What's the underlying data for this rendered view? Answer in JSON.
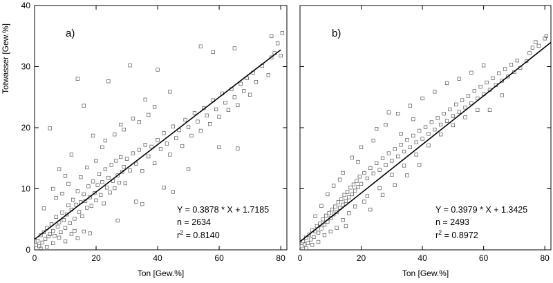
{
  "chart_data": [
    {
      "type": "scatter",
      "panel_label": "a)",
      "xlabel": "Ton [Gew.%]",
      "ylabel": "Totwasser [Gew.%]",
      "xlim": [
        0,
        82
      ],
      "ylim": [
        0,
        40
      ],
      "xticks": [
        0,
        20,
        40,
        60,
        80
      ],
      "yticks": [
        0,
        10,
        20,
        30,
        40
      ],
      "xtick_labels": [
        "0",
        "20",
        "40",
        "60",
        "80"
      ],
      "ytick_labels": [
        "0",
        "10",
        "20",
        "30",
        "40"
      ],
      "regression": {
        "slope": 0.3878,
        "intercept": 1.7185,
        "x_range": [
          0,
          80
        ]
      },
      "annotation": {
        "equation": "Y = 0.3878 * X + 1.7185",
        "n": "n = 2634",
        "r2_prefix": "r",
        "r2_sup": "2",
        "r2_value": " = 0.8140"
      },
      "points": [
        [
          0.5,
          0.8
        ],
        [
          1,
          1.5
        ],
        [
          1.5,
          0.6
        ],
        [
          2,
          2.4
        ],
        [
          2.5,
          1.2
        ],
        [
          3,
          2.9
        ],
        [
          3.5,
          1.8
        ],
        [
          4,
          3.6
        ],
        [
          4.5,
          2.2
        ],
        [
          5,
          2.6
        ],
        [
          5.5,
          4.2
        ],
        [
          6,
          3.1
        ],
        [
          6.5,
          2.3
        ],
        [
          7,
          5.4
        ],
        [
          7.5,
          3.8
        ],
        [
          8,
          4.5
        ],
        [
          8.5,
          2.9
        ],
        [
          9,
          6.1
        ],
        [
          9.5,
          4.9
        ],
        [
          10,
          3.6
        ],
        [
          10.5,
          5.8
        ],
        [
          11,
          7.3
        ],
        [
          11.5,
          4.4
        ],
        [
          12,
          6.6
        ],
        [
          12.5,
          8.2
        ],
        [
          13,
          5.1
        ],
        [
          13.5,
          7.4
        ],
        [
          14,
          9.6
        ],
        [
          14.5,
          6.2
        ],
        [
          15,
          7.8
        ],
        [
          15.5,
          5.5
        ],
        [
          16,
          9.1
        ],
        [
          16.5,
          8.0
        ],
        [
          17,
          6.9
        ],
        [
          17.5,
          10.4
        ],
        [
          18,
          8.6
        ],
        [
          18.5,
          7.2
        ],
        [
          19,
          11.2
        ],
        [
          19.5,
          9.3
        ],
        [
          20,
          8.1
        ],
        [
          20.5,
          10.6
        ],
        [
          21,
          12.4
        ],
        [
          21.5,
          9.0
        ],
        [
          22,
          11.1
        ],
        [
          22.5,
          7.6
        ],
        [
          23,
          13.2
        ],
        [
          23.5,
          10.2
        ],
        [
          24,
          11.8
        ],
        [
          24.5,
          9.4
        ],
        [
          25,
          13.9
        ],
        [
          25.5,
          11.3
        ],
        [
          26,
          10.1
        ],
        [
          26.5,
          14.6
        ],
        [
          27,
          12.2
        ],
        [
          27.5,
          11.0
        ],
        [
          28,
          15.2
        ],
        [
          28.5,
          12.8
        ],
        [
          29,
          13.6
        ],
        [
          29.5,
          10.9
        ],
        [
          30,
          14.9
        ],
        [
          31,
          13.0
        ],
        [
          32,
          15.8
        ],
        [
          33,
          14.1
        ],
        [
          34,
          16.4
        ],
        [
          35,
          12.9
        ],
        [
          36,
          17.2
        ],
        [
          37,
          15.3
        ],
        [
          38,
          16.9
        ],
        [
          39,
          14.2
        ],
        [
          40,
          18.0
        ],
        [
          41,
          16.5
        ],
        [
          42,
          19.1
        ],
        [
          43,
          17.4
        ],
        [
          44,
          15.6
        ],
        [
          45,
          20.2
        ],
        [
          46,
          18.3
        ],
        [
          47,
          19.6
        ],
        [
          48,
          17.0
        ],
        [
          49,
          21.3
        ],
        [
          50,
          20.1
        ],
        [
          51,
          18.7
        ],
        [
          52,
          22.4
        ],
        [
          53,
          21.0
        ],
        [
          54,
          19.5
        ],
        [
          55,
          23.2
        ],
        [
          56,
          22.0
        ],
        [
          57,
          20.6
        ],
        [
          58,
          24.5
        ],
        [
          59,
          23.0
        ],
        [
          60,
          21.8
        ],
        [
          61,
          25.6
        ],
        [
          62,
          24.1
        ],
        [
          63,
          22.9
        ],
        [
          64,
          26.3
        ],
        [
          65,
          25.0
        ],
        [
          66,
          23.7
        ],
        [
          67,
          27.2
        ],
        [
          68,
          26.0
        ],
        [
          69,
          28.1
        ],
        [
          70,
          25.4
        ],
        [
          71,
          29.0
        ],
        [
          72,
          27.5
        ],
        [
          74,
          30.1
        ],
        [
          76,
          28.6
        ],
        [
          77,
          31.5
        ],
        [
          78,
          32.2
        ],
        [
          80,
          31.8
        ],
        [
          80.5,
          35.5
        ],
        [
          77,
          35.0
        ],
        [
          79,
          33.8
        ],
        [
          2,
          0.2
        ],
        [
          4,
          0.5
        ],
        [
          6,
          1.1
        ],
        [
          8,
          2.0
        ],
        [
          10,
          1.4
        ],
        [
          12,
          2.6
        ],
        [
          14,
          1.9
        ],
        [
          16,
          3.0
        ],
        [
          18,
          2.7
        ],
        [
          5,
          19.9
        ],
        [
          14,
          28.0
        ],
        [
          16,
          23.6
        ],
        [
          24,
          27.6
        ],
        [
          31,
          30.2
        ],
        [
          40,
          29.5
        ],
        [
          54,
          33.3
        ],
        [
          58,
          32.4
        ],
        [
          65,
          33.0
        ],
        [
          35,
          7.5
        ],
        [
          45,
          9.5
        ],
        [
          50,
          13.2
        ],
        [
          60,
          16.8
        ],
        [
          66,
          16.6
        ],
        [
          27,
          4.8
        ],
        [
          33,
          7.9
        ],
        [
          42,
          10.2
        ],
        [
          22,
          16.8
        ],
        [
          19,
          18.7
        ],
        [
          28,
          20.5
        ],
        [
          36,
          24.6
        ],
        [
          44,
          25.9
        ],
        [
          6,
          10.0
        ],
        [
          8,
          13.2
        ],
        [
          10,
          12.1
        ],
        [
          12,
          15.6
        ],
        [
          9,
          9.2
        ],
        [
          3,
          6.8
        ],
        [
          7,
          8.5
        ],
        [
          11,
          10.8
        ],
        [
          13,
          3.1
        ],
        [
          15,
          11.9
        ],
        [
          17,
          13.5
        ],
        [
          20,
          14.6
        ],
        [
          23,
          17.9
        ],
        [
          26,
          18.9
        ],
        [
          29,
          19.7
        ],
        [
          32,
          21.5
        ],
        [
          34,
          20.9
        ],
        [
          37,
          22.1
        ],
        [
          39,
          23.4
        ]
      ]
    },
    {
      "type": "scatter",
      "panel_label": "b)",
      "xlabel": "Ton [Gew.%]",
      "ylabel": "",
      "xlim": [
        0,
        82
      ],
      "ylim": [
        0,
        40
      ],
      "xticks": [
        0,
        20,
        40,
        60,
        80
      ],
      "yticks": [
        0,
        10,
        20,
        30,
        40
      ],
      "xtick_labels": [
        "0",
        "20",
        "40",
        "60",
        "80"
      ],
      "ytick_labels": [],
      "regression": {
        "slope": 0.3979,
        "intercept": 1.3425,
        "x_range": [
          0,
          82
        ]
      },
      "annotation": {
        "equation": "Y = 0.3979 * X + 1.3425",
        "n": "n = 2493",
        "r2_prefix": "r",
        "r2_sup": "2",
        "r2_value": " = 0.8972"
      },
      "points": [
        [
          0.5,
          0.6
        ],
        [
          1,
          1.4
        ],
        [
          1.5,
          0.9
        ],
        [
          2,
          2.0
        ],
        [
          2.5,
          1.1
        ],
        [
          3,
          2.5
        ],
        [
          3.5,
          1.7
        ],
        [
          4,
          3.2
        ],
        [
          4.5,
          2.1
        ],
        [
          5,
          3.0
        ],
        [
          5.5,
          3.9
        ],
        [
          6,
          2.8
        ],
        [
          6.5,
          4.3
        ],
        [
          7,
          3.5
        ],
        [
          7.5,
          5.0
        ],
        [
          8,
          4.1
        ],
        [
          8.5,
          5.6
        ],
        [
          9,
          4.6
        ],
        [
          9.5,
          6.0
        ],
        [
          10,
          5.2
        ],
        [
          10.5,
          6.6
        ],
        [
          11,
          5.8
        ],
        [
          11.5,
          7.1
        ],
        [
          12,
          6.2
        ],
        [
          12.5,
          7.8
        ],
        [
          13,
          6.9
        ],
        [
          13.5,
          8.3
        ],
        [
          14,
          7.4
        ],
        [
          14.5,
          9.0
        ],
        [
          15,
          8.0
        ],
        [
          15.5,
          9.5
        ],
        [
          16,
          8.6
        ],
        [
          16.5,
          10.2
        ],
        [
          17,
          9.1
        ],
        [
          17.5,
          10.7
        ],
        [
          18,
          9.7
        ],
        [
          18.5,
          11.3
        ],
        [
          19,
          10.3
        ],
        [
          19.5,
          12.0
        ],
        [
          20,
          10.8
        ],
        [
          21,
          12.6
        ],
        [
          22,
          11.7
        ],
        [
          23,
          13.4
        ],
        [
          24,
          12.5
        ],
        [
          25,
          14.2
        ],
        [
          26,
          13.1
        ],
        [
          27,
          15.0
        ],
        [
          28,
          13.9
        ],
        [
          29,
          15.8
        ],
        [
          30,
          14.6
        ],
        [
          31,
          16.5
        ],
        [
          32,
          15.3
        ],
        [
          33,
          17.2
        ],
        [
          34,
          16.1
        ],
        [
          35,
          18.0
        ],
        [
          36,
          16.8
        ],
        [
          37,
          18.7
        ],
        [
          38,
          17.6
        ],
        [
          39,
          19.5
        ],
        [
          40,
          18.2
        ],
        [
          41,
          20.1
        ],
        [
          42,
          19.0
        ],
        [
          43,
          20.9
        ],
        [
          44,
          19.7
        ],
        [
          45,
          21.6
        ],
        [
          46,
          20.5
        ],
        [
          47,
          22.3
        ],
        [
          48,
          21.1
        ],
        [
          49,
          23.0
        ],
        [
          50,
          21.9
        ],
        [
          51,
          23.8
        ],
        [
          52,
          22.6
        ],
        [
          53,
          24.5
        ],
        [
          54,
          23.3
        ],
        [
          55,
          25.2
        ],
        [
          56,
          24.0
        ],
        [
          57,
          26.0
        ],
        [
          58,
          24.8
        ],
        [
          59,
          26.7
        ],
        [
          60,
          25.5
        ],
        [
          61,
          27.4
        ],
        [
          62,
          26.2
        ],
        [
          63,
          28.1
        ],
        [
          64,
          27.0
        ],
        [
          65,
          28.9
        ],
        [
          66,
          27.7
        ],
        [
          67,
          29.6
        ],
        [
          68,
          28.4
        ],
        [
          69,
          30.3
        ],
        [
          70,
          29.1
        ],
        [
          71,
          31.0
        ],
        [
          72,
          29.8
        ],
        [
          74,
          30.9
        ],
        [
          75,
          32.2
        ],
        [
          76,
          33.1
        ],
        [
          77,
          34.0
        ],
        [
          78,
          33.4
        ],
        [
          80,
          34.6
        ],
        [
          80.5,
          35.0
        ],
        [
          62,
          22.9
        ],
        [
          2,
          0.3
        ],
        [
          4,
          0.8
        ],
        [
          6,
          1.3
        ],
        [
          8,
          2.4
        ],
        [
          10,
          3.0
        ],
        [
          12,
          3.6
        ],
        [
          14,
          4.9
        ],
        [
          16,
          6.0
        ],
        [
          18,
          7.1
        ],
        [
          22,
          8.8
        ],
        [
          26,
          10.1
        ],
        [
          30,
          12.3
        ],
        [
          34,
          13.8
        ],
        [
          38,
          15.6
        ],
        [
          42,
          17.1
        ],
        [
          46,
          18.9
        ],
        [
          50,
          20.4
        ],
        [
          54,
          21.7
        ],
        [
          58,
          22.9
        ],
        [
          66,
          25.3
        ],
        [
          24,
          17.9
        ],
        [
          28,
          20.5
        ],
        [
          32,
          22.3
        ],
        [
          36,
          23.6
        ],
        [
          40,
          24.8
        ],
        [
          44,
          25.9
        ],
        [
          48,
          27.3
        ],
        [
          52,
          28.0
        ],
        [
          56,
          29.0
        ],
        [
          60,
          30.2
        ],
        [
          17,
          15.1
        ],
        [
          20,
          16.8
        ],
        [
          14,
          12.6
        ],
        [
          11,
          10.5
        ],
        [
          9,
          9.1
        ],
        [
          23,
          6.6
        ],
        [
          27,
          9.0
        ],
        [
          31,
          10.6
        ],
        [
          35,
          12.2
        ],
        [
          39,
          13.9
        ],
        [
          5,
          5.5
        ],
        [
          7,
          7.2
        ],
        [
          13,
          11.5
        ],
        [
          15,
          3.9
        ],
        [
          19,
          14.4
        ],
        [
          21,
          7.9
        ],
        [
          25,
          19.8
        ],
        [
          29,
          22.5
        ],
        [
          33,
          19.0
        ],
        [
          37,
          21.4
        ]
      ]
    }
  ]
}
